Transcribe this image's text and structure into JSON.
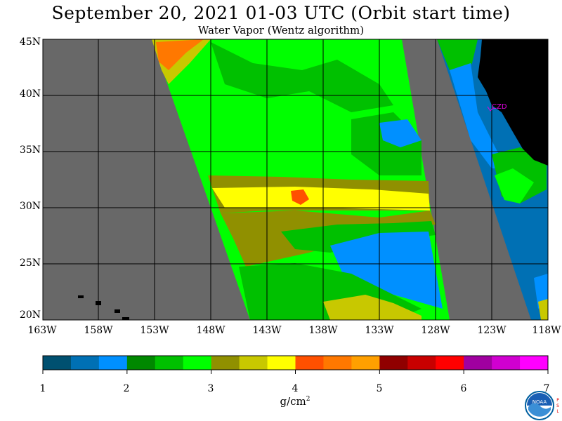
{
  "title": "September 20, 2021  01-03 UTC  (Orbit start time)",
  "subtitle": "Water Vapor (Wentz algorithm)",
  "lat_labels": [
    "45N",
    "40N",
    "35N",
    "30N",
    "25N",
    "20N"
  ],
  "lon_labels": [
    "163W",
    "158W",
    "153W",
    "148W",
    "143W",
    "138W",
    "133W",
    "128W",
    "123W",
    "118W"
  ],
  "station_label": "CZD",
  "colorbar": {
    "ticks": [
      "1",
      "2",
      "3",
      "4",
      "5",
      "6",
      "7"
    ],
    "units": "g/cm",
    "units_exp": "2",
    "colors": [
      "#005070",
      "#0070b4",
      "#0090ff",
      "#008800",
      "#00c000",
      "#00ff00",
      "#909000",
      "#c8c800",
      "#ffff00",
      "#ff5000",
      "#ff7800",
      "#ffa000",
      "#900000",
      "#c80000",
      "#ff0000",
      "#a000a0",
      "#d000d0",
      "#ff00ff"
    ]
  },
  "map_colors": {
    "nodata": "#686868",
    "land": "#000000",
    "ocean_far": "#0070b4",
    "wv_1_5": "#0090ff",
    "wv_2_0": "#008800",
    "wv_2_5": "#00c000",
    "wv_3_0": "#00ff00",
    "wv_3_3": "#909000",
    "wv_3_7": "#c8c800",
    "wv_4_0": "#ffff00",
    "wv_4_3": "#ff5000",
    "wv_4_6": "#ff7800"
  },
  "logo_text": "NOAA",
  "psl_text": "PSL"
}
